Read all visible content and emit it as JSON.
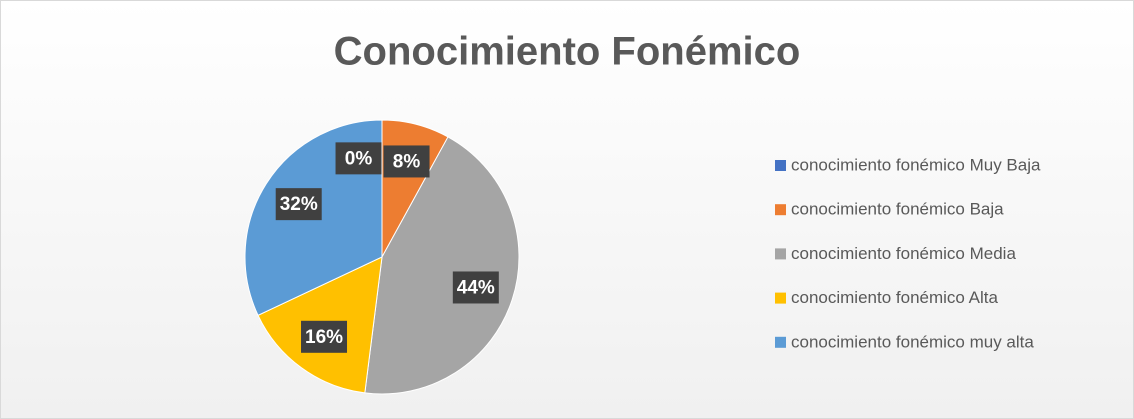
{
  "chart_data": {
    "type": "pie",
    "title": "Conocimiento Fonémico",
    "categories": [
      "conocimiento fonémico Muy Baja",
      "conocimiento fonémico Baja",
      "conocimiento fonémico Media",
      "conocimiento fonémico Alta",
      "conocimiento fonémico muy alta"
    ],
    "values": [
      0,
      8,
      44,
      16,
      32
    ],
    "value_labels": [
      "0%",
      "8%",
      "44%",
      "16%",
      "32%"
    ],
    "colors": [
      "#4472c4",
      "#ed7d31",
      "#a5a5a5",
      "#ffc000",
      "#5b9bd5"
    ],
    "legend": "right"
  }
}
